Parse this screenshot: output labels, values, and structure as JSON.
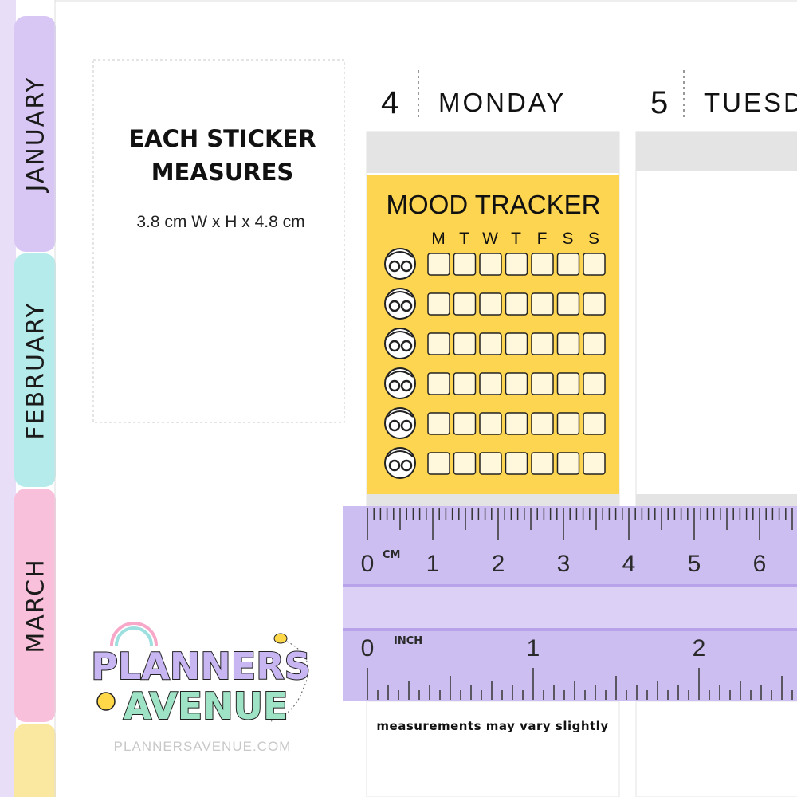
{
  "tabs": [
    "JANUARY",
    "FEBRUARY",
    "MARCH"
  ],
  "info": {
    "title_lines": [
      "EACH STICKER",
      "MEASURES"
    ],
    "size": "3.8 cm W   x   H  x 4.8 cm"
  },
  "days": [
    {
      "number": "4",
      "name": "MONDAY"
    },
    {
      "number": "5",
      "name": "TUESD"
    }
  ],
  "sticker": {
    "title": "MOOD TRACKER",
    "weekdays": [
      "M",
      "T",
      "W",
      "T",
      "F",
      "S",
      "S"
    ]
  },
  "ruler": {
    "cm_unit": "CM",
    "cm_labels": [
      "0",
      "1",
      "2",
      "3",
      "4",
      "5",
      "6"
    ],
    "inch_unit": "INCH",
    "inch_labels": [
      "0",
      "1",
      "2"
    ],
    "note": "measurements may vary slightly"
  },
  "logo": {
    "line1": "PLANNERS",
    "line2": "AVENUE",
    "url": "PLANNERSAVENUE.COM"
  }
}
